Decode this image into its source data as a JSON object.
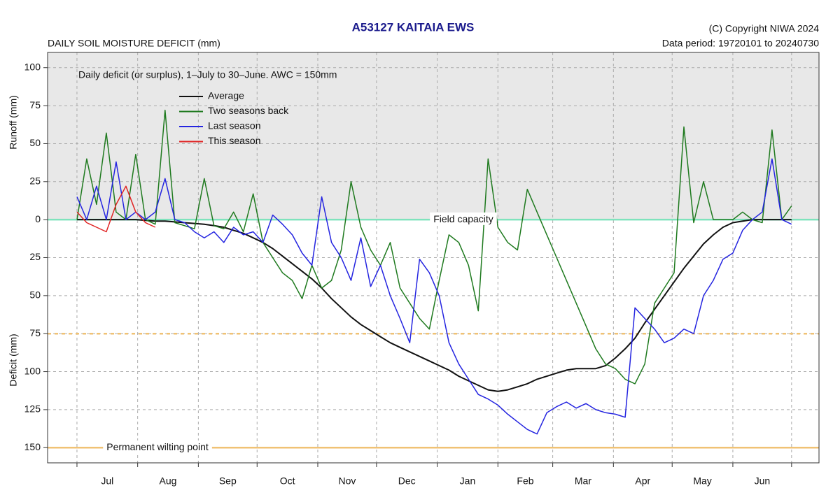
{
  "chart_data": {
    "type": "line",
    "title": "A53127  KAITAIA EWS",
    "subtitle": "DAILY SOIL MOISTURE DEFICIT (mm)",
    "copyright": "(C) Copyright NIWA  2024",
    "data_period": "Data period:  19720101  to  20240730",
    "annotation": "Daily deficit (or surplus), 1–July to 30–June.  AWC = 150mm",
    "y_label_upper": "Runoff (mm)",
    "y_label_lower": "Deficit (mm)",
    "legend": "upper left",
    "grid": true,
    "shading_color": "#e8e8e8",
    "xlim": [
      -15,
      379
    ],
    "xticks": [
      0,
      31,
      62,
      92,
      123,
      153,
      184,
      215,
      243,
      274,
      304,
      335,
      365
    ],
    "categories": [
      "Jul",
      "Aug",
      "Sep",
      "Oct",
      "Nov",
      "Dec",
      "Jan",
      "Feb",
      "Mar",
      "Apr",
      "May",
      "Jun"
    ],
    "ylim": [
      -160,
      110
    ],
    "yticks": [
      100,
      75,
      50,
      25,
      0,
      {
        "value": -25,
        "label": "25"
      },
      {
        "value": -50,
        "label": "50"
      },
      {
        "value": -75,
        "label": "75"
      },
      {
        "value": -100,
        "label": "100"
      },
      {
        "value": -125,
        "label": "125"
      },
      {
        "value": -150,
        "label": "150"
      }
    ],
    "reference_lines": [
      {
        "value": 0,
        "label": "Field capacity",
        "color": "#7fe3bd"
      },
      {
        "value": -75,
        "color": "#f0c274",
        "style": "dashed"
      },
      {
        "value": -150,
        "label": "Permanent wilting point",
        "color": "#f0c274"
      }
    ],
    "x": [
      0,
      5,
      10,
      15,
      20,
      25,
      30,
      35,
      40,
      45,
      50,
      55,
      60,
      65,
      70,
      75,
      80,
      85,
      90,
      95,
      100,
      105,
      110,
      115,
      120,
      125,
      130,
      135,
      140,
      145,
      150,
      155,
      160,
      165,
      170,
      175,
      180,
      185,
      190,
      195,
      200,
      205,
      210,
      215,
      220,
      225,
      230,
      235,
      240,
      245,
      250,
      255,
      260,
      265,
      270,
      275,
      280,
      285,
      290,
      295,
      300,
      305,
      310,
      315,
      320,
      325,
      330,
      335,
      340,
      345,
      350,
      355,
      360,
      365
    ],
    "series": [
      {
        "name": "Average",
        "color": "#111111",
        "width": 2,
        "values": [
          0,
          0,
          0,
          0,
          0,
          0,
          0,
          -0.5,
          -1,
          -1,
          -1.5,
          -2,
          -2.5,
          -3,
          -4,
          -5,
          -7,
          -9,
          -12,
          -15,
          -19,
          -24,
          -29,
          -34,
          -39,
          -45,
          -52,
          -58,
          -64,
          -69,
          -73,
          -77,
          -81,
          -84,
          -87,
          -90,
          -93,
          -96,
          -99,
          -103,
          -106,
          -109,
          -112,
          -113,
          -112,
          -110,
          -108,
          -105,
          -103,
          -101,
          -99,
          -98,
          -98,
          -98,
          -96,
          -91,
          -85,
          -78,
          -68,
          -59,
          -50,
          -41,
          -32,
          -24,
          -16,
          -10,
          -5,
          -2,
          -1,
          0,
          0,
          0,
          0,
          0
        ]
      },
      {
        "name": "Two seasons back",
        "color": "#1f7a1f",
        "width": 1.5,
        "values": [
          0,
          40,
          10,
          57,
          5,
          0,
          43,
          0,
          -3,
          72,
          -2,
          -4,
          -6,
          27,
          -4,
          -6,
          5,
          -8,
          17,
          -15,
          -25,
          -35,
          -40,
          -52,
          -30,
          -45,
          -40,
          -20,
          25,
          -5,
          -20,
          -30,
          -15,
          -45,
          -55,
          -65,
          -72,
          -40,
          -10,
          -15,
          -30,
          -60,
          40,
          -5,
          -15,
          -20,
          20,
          5,
          -10,
          -25,
          -40,
          -55,
          -70,
          -85,
          -95,
          -98,
          -105,
          -108,
          -95,
          -55,
          -45,
          -35,
          61,
          -2,
          25,
          0,
          0,
          0,
          5,
          0,
          -2,
          59,
          0,
          9
        ]
      },
      {
        "name": "Last season",
        "color": "#2424e0",
        "width": 1.5,
        "values": [
          15,
          0,
          22,
          0,
          38,
          0,
          5,
          0,
          5,
          27,
          0,
          -2,
          -8,
          -12,
          -8,
          -15,
          -5,
          -10,
          -8,
          -15,
          3,
          -3,
          -10,
          -22,
          -30,
          15,
          -15,
          -25,
          -40,
          -12,
          -44,
          -30,
          -50,
          -65,
          -81,
          -26,
          -35,
          -50,
          -81,
          -95,
          -105,
          -115,
          -118,
          -122,
          -128,
          -133,
          -138,
          -141,
          -127,
          -123,
          -120,
          -124,
          -121,
          -125,
          -127,
          -128,
          -130,
          -58,
          -65,
          -72,
          -81,
          -78,
          -72,
          -75,
          -50,
          -40,
          -26,
          -22,
          -7,
          0,
          5,
          40,
          0,
          -3
        ]
      },
      {
        "name": "This season",
        "color": "#e02424",
        "width": 1.5,
        "x": [
          0,
          5,
          10,
          15,
          20,
          25,
          30,
          35,
          40
        ],
        "values": [
          5,
          -2,
          -5,
          -8,
          10,
          22,
          5,
          -2,
          -5
        ]
      }
    ]
  }
}
